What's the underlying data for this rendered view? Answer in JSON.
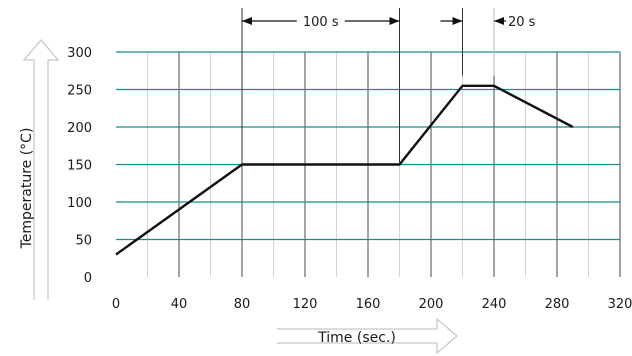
{
  "chart_data": {
    "type": "line",
    "xlabel": "Time (sec.)",
    "ylabel": "Temperature (°C)",
    "xlim": [
      0,
      320
    ],
    "ylim": [
      0,
      300
    ],
    "xticks": [
      0,
      40,
      80,
      120,
      160,
      200,
      240,
      280,
      320
    ],
    "yticks": [
      0,
      50,
      100,
      150,
      200,
      250,
      300
    ],
    "grid": true,
    "colors": {
      "line": "#111111",
      "hgrid": "#1a8c8c",
      "vgrid": "#4a4a4a",
      "arrow": "#c8c8c8"
    },
    "series": [
      {
        "x": [
          0,
          80,
          180,
          220,
          240,
          290
        ],
        "y": [
          30,
          150,
          150,
          255,
          255,
          200
        ]
      }
    ],
    "annotations": [
      {
        "label": "100 s",
        "from": 80,
        "to": 180
      },
      {
        "label": "20 s",
        "from": 220,
        "to": 240
      }
    ]
  }
}
